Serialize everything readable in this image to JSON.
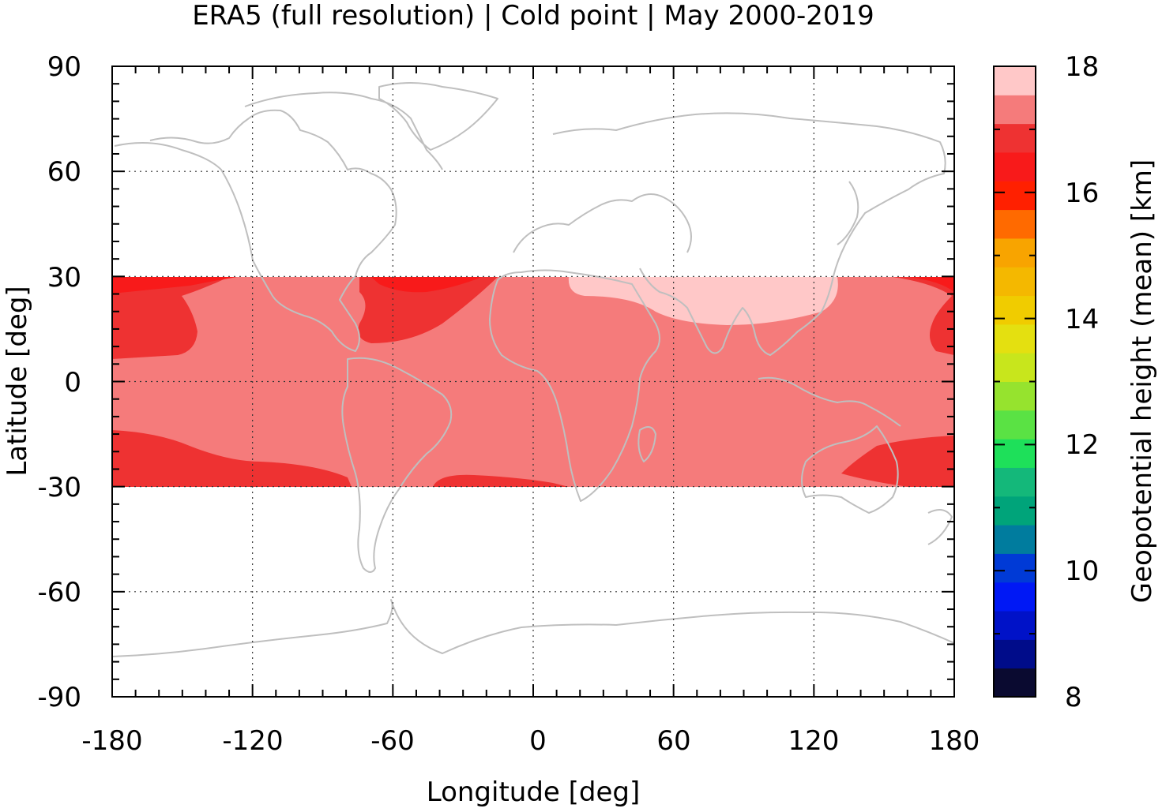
{
  "title": "ERA5 (full resolution) | Cold point | May 2000-2019",
  "map": {
    "xlabel": "Longitude [deg]",
    "ylabel": "Latitude [deg]",
    "x_ticks": [
      "-180",
      "-120",
      "-60",
      "0",
      "60",
      "120",
      "180"
    ],
    "y_ticks": [
      "90",
      "60",
      "30",
      "0",
      "-30",
      "-60",
      "-90"
    ],
    "xlim": [
      -180,
      180
    ],
    "ylim": [
      -90,
      90
    ],
    "data_lat_range": [
      -30,
      30
    ],
    "grid": "dotted",
    "coastline_color": "#bfbfbf"
  },
  "colorbar": {
    "label": "Geopotential height (mean) [km]",
    "ticks": [
      "18",
      "16",
      "14",
      "12",
      "10",
      "8"
    ],
    "range": [
      8,
      18
    ],
    "step": 0.5,
    "colors": [
      "#0a0a30",
      "#000c8a",
      "#0012c8",
      "#0018f5",
      "#003ad6",
      "#007c9e",
      "#00a47a",
      "#14b87a",
      "#1ee05a",
      "#5ae244",
      "#96e32e",
      "#c8e61c",
      "#e4e010",
      "#f0cc00",
      "#f4b800",
      "#f8a400",
      "#ff6a00",
      "#ff2000",
      "#f81a1a",
      "#ee3232",
      "#f57b7b",
      "#ffc8c8"
    ]
  },
  "chart_data": {
    "type": "heatmap",
    "title": "ERA5 (full resolution) | Cold point | May 2000-2019",
    "xlabel": "Longitude [deg]",
    "ylabel": "Latitude [deg]",
    "xlim": [
      -180,
      180
    ],
    "ylim": [
      -90,
      90
    ],
    "zlabel": "Geopotential height (mean) [km]",
    "zlim": [
      8,
      18
    ],
    "regions": [
      {
        "level_km": 17.25,
        "description": "background tropical band -30 to 30"
      },
      {
        "level_km": 16.75,
        "description": "subtropical patches near date line, western Atlantic, southern subtropics"
      },
      {
        "level_km": 16.25,
        "description": "edges near 30N over Pacific and Atlantic"
      },
      {
        "level_km": 17.75,
        "description": "Asian monsoon region 10E-130E north of ~15N"
      }
    ]
  }
}
